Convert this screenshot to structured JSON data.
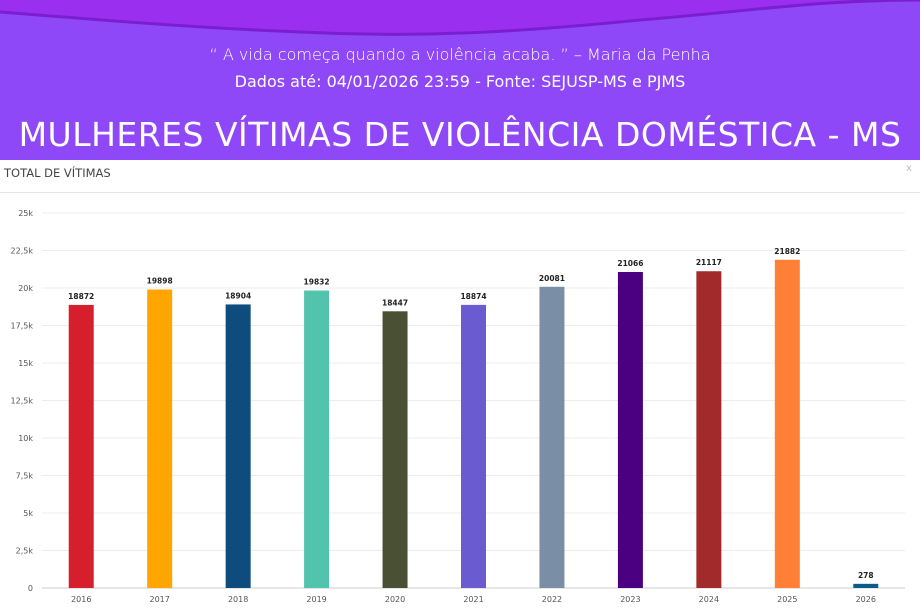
{
  "header": {
    "quote": "“ A vida começa quando a violência acaba. ” – Maria da Penha",
    "data_info": "Dados até: 04/01/2026 23:59 - Fonte: SEJUSP-MS e PJMS",
    "title": "MULHERES VÍTIMAS DE VIOLÊNCIA DOMÉSTICA - MS"
  },
  "panel": {
    "title": "TOTAL DE VÍTIMAS",
    "close_label": "x"
  },
  "chart_data": {
    "type": "bar",
    "title": "TOTAL DE VÍTIMAS",
    "categories": [
      "2016",
      "2017",
      "2018",
      "2019",
      "2020",
      "2021",
      "2022",
      "2023",
      "2024",
      "2025",
      "2026"
    ],
    "values": [
      18872,
      19898,
      18904,
      19832,
      18447,
      18874,
      20081,
      21066,
      21117,
      21882,
      278
    ],
    "value_labels": [
      "18872",
      "19898",
      "18904",
      "19832",
      "18447",
      "18874",
      "20081",
      "21066",
      "21117",
      "21882",
      "278"
    ],
    "colors": [
      "#d61f2c",
      "#ffa500",
      "#0e4c7e",
      "#52c3ad",
      "#4a5034",
      "#6b5bd1",
      "#7a8fa6",
      "#4b0082",
      "#a22a2a",
      "#ff7f36",
      "#0b5b8a"
    ],
    "yticks": [
      0,
      2500,
      5000,
      7500,
      10000,
      12500,
      15000,
      17500,
      20000,
      22500,
      25000
    ],
    "ytick_labels": [
      "0",
      "2,5k",
      "5k",
      "7,5k",
      "10k",
      "12,5k",
      "15k",
      "17,5k",
      "20k",
      "22,5k",
      "25k"
    ],
    "ylim": [
      0,
      25000
    ],
    "xlabel": "",
    "ylabel": "",
    "grid": true
  }
}
